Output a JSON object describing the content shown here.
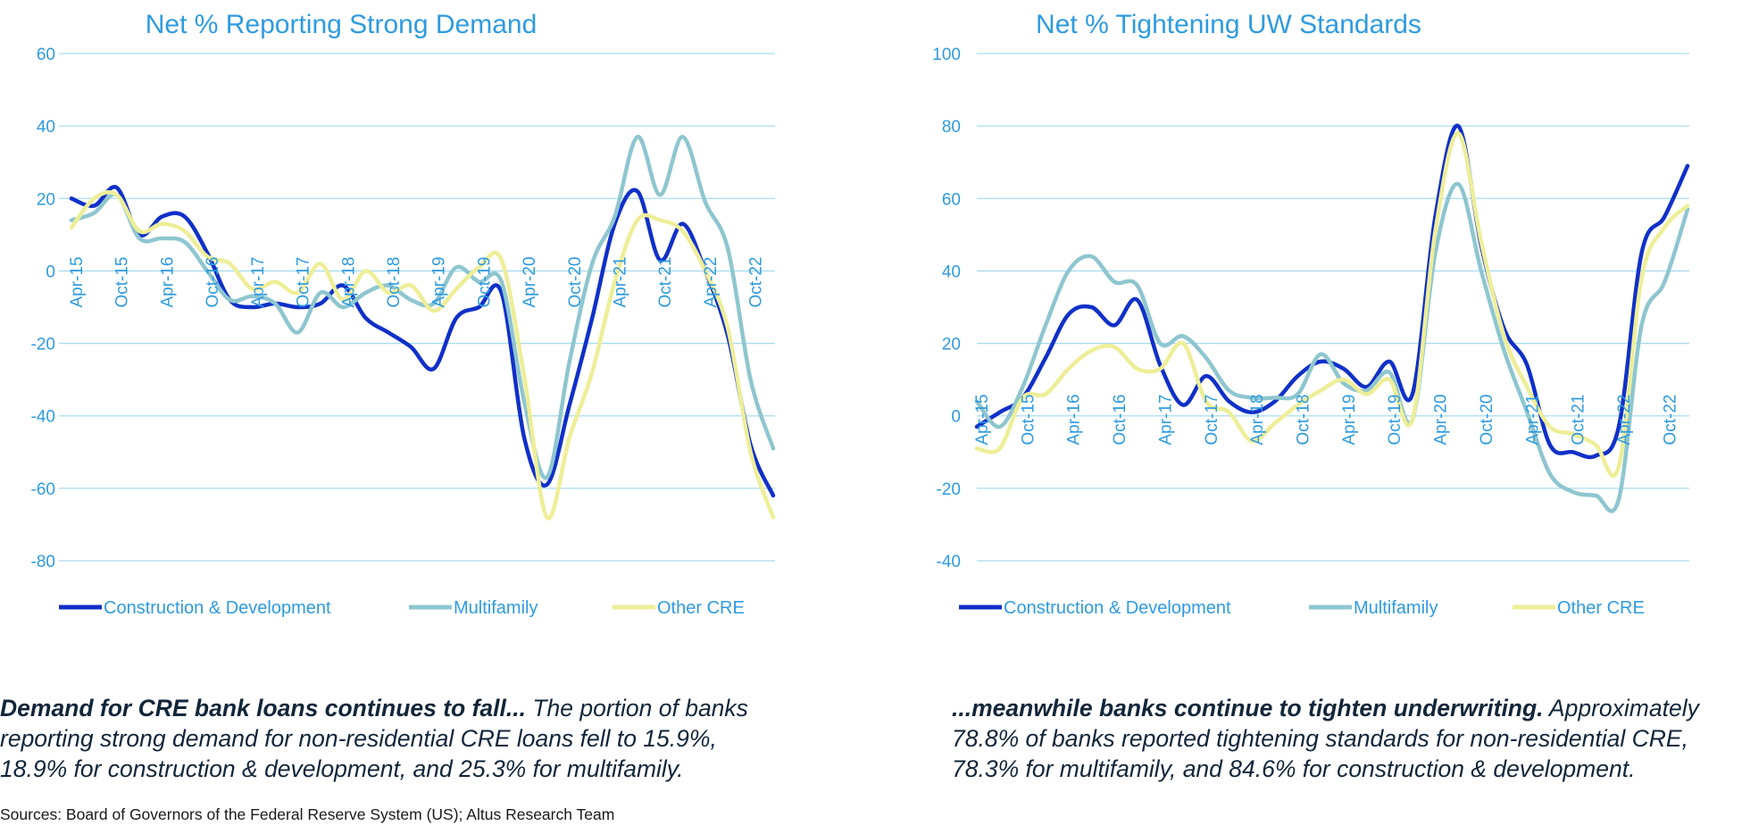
{
  "colors": {
    "construction": "#1030c8",
    "multifamily": "#8ec6cf",
    "other": "#eeee98",
    "axis_text": "#2e9be0",
    "grid": "#a9dcef"
  },
  "xtick_labels": [
    "Apr-15",
    "Oct-15",
    "Apr-16",
    "Oct-16",
    "Apr-17",
    "Oct-17",
    "Apr-18",
    "Oct-18",
    "Apr-19",
    "Oct-19",
    "Apr-20",
    "Oct-20",
    "Apr-21",
    "Oct-21",
    "Apr-22",
    "Oct-22"
  ],
  "legend_labels": [
    "Construction & Development",
    "Multifamily",
    "Other CRE"
  ],
  "chart_data": [
    {
      "type": "line",
      "title": "Net % Reporting Strong Demand",
      "xlabel": "",
      "ylabel": "",
      "ylim": [
        -80,
        60
      ],
      "yticks": [
        60,
        40,
        20,
        0,
        -20,
        -40,
        -60,
        -80
      ],
      "x": [
        "Apr-15",
        "Jul-15",
        "Oct-15",
        "Jan-16",
        "Apr-16",
        "Jul-16",
        "Oct-16",
        "Jan-17",
        "Apr-17",
        "Jul-17",
        "Oct-17",
        "Jan-18",
        "Apr-18",
        "Jul-18",
        "Oct-18",
        "Jan-19",
        "Apr-19",
        "Jul-19",
        "Oct-19",
        "Jan-20",
        "Apr-20",
        "Jul-20",
        "Oct-20",
        "Jan-21",
        "Apr-21",
        "Jul-21",
        "Oct-21",
        "Jan-22",
        "Apr-22",
        "Jul-22",
        "Oct-22",
        "Jan-23"
      ],
      "grid": true,
      "legend_position": "bottom",
      "series": [
        {
          "name": "Construction & Development",
          "color_key": "construction",
          "values": [
            20,
            18,
            23,
            10,
            15,
            15,
            5,
            -8,
            -10,
            -9,
            -10,
            -9,
            -4,
            -13,
            -17,
            -21,
            -27,
            -13,
            -10,
            -6,
            -46,
            -59,
            -37,
            -13,
            13,
            22,
            3,
            13,
            0,
            -18,
            -48,
            -62
          ]
        },
        {
          "name": "Multifamily",
          "color_key": "multifamily",
          "values": [
            14,
            16,
            21,
            9,
            9,
            8,
            0,
            -8,
            -7,
            -9,
            -17,
            -6,
            -10,
            -6,
            -4,
            -8,
            -9,
            1,
            -3,
            -3,
            -36,
            -57,
            -25,
            2,
            15,
            37,
            21,
            37,
            19,
            6,
            -30,
            -49
          ]
        },
        {
          "name": "Other CRE",
          "color_key": "other",
          "values": [
            12,
            20,
            21,
            11,
            13,
            11,
            4,
            2,
            -5,
            -3,
            -6,
            2,
            -8,
            0,
            -6,
            -4,
            -11,
            -5,
            1,
            3,
            -29,
            -68,
            -46,
            -28,
            -3,
            14,
            14,
            11,
            0,
            -16,
            -50,
            -68
          ]
        }
      ]
    },
    {
      "type": "line",
      "title": "Net % Tightening UW Standards",
      "xlabel": "",
      "ylabel": "",
      "ylim": [
        -40,
        100
      ],
      "yticks": [
        100,
        80,
        60,
        40,
        20,
        0,
        -20,
        -40
      ],
      "x": [
        "Apr-15",
        "Jul-15",
        "Oct-15",
        "Jan-16",
        "Apr-16",
        "Jul-16",
        "Oct-16",
        "Jan-17",
        "Apr-17",
        "Jul-17",
        "Oct-17",
        "Jan-18",
        "Apr-18",
        "Jul-18",
        "Oct-18",
        "Jan-19",
        "Apr-19",
        "Jul-19",
        "Oct-19",
        "Jan-20",
        "Apr-20",
        "Jul-20",
        "Oct-20",
        "Jan-21",
        "Apr-21",
        "Jul-21",
        "Oct-21",
        "Jan-22",
        "Apr-22",
        "Jul-22",
        "Oct-22",
        "Jan-23"
      ],
      "grid": true,
      "legend_position": "bottom",
      "series": [
        {
          "name": "Construction & Development",
          "color_key": "construction",
          "values": [
            -3,
            1,
            5,
            16,
            28,
            30,
            25,
            32,
            14,
            3,
            11,
            4,
            1,
            4,
            11,
            15,
            13,
            8,
            15,
            6,
            55,
            80,
            47,
            24,
            14,
            -8,
            -10,
            -11,
            -3,
            45,
            55,
            69
          ]
        },
        {
          "name": "Multifamily",
          "color_key": "multifamily",
          "values": [
            4,
            -3,
            8,
            25,
            40,
            44,
            37,
            36,
            20,
            22,
            16,
            7,
            5,
            5,
            6,
            17,
            9,
            7,
            12,
            -1,
            45,
            64,
            40,
            18,
            1,
            -16,
            -21,
            -22,
            -23,
            25,
            37,
            57
          ]
        },
        {
          "name": "Other CRE",
          "color_key": "other",
          "values": [
            -9,
            -9,
            5,
            6,
            13,
            18,
            19,
            13,
            13,
            20,
            4,
            1,
            -7,
            -2,
            3,
            7,
            10,
            6,
            10,
            -1,
            51,
            78,
            48,
            22,
            8,
            -3,
            -5,
            -8,
            -14,
            38,
            52,
            58
          ]
        }
      ]
    }
  ],
  "captions": {
    "left_bold": "Demand for CRE bank loans continues to fall...",
    "left_text": " The portion of banks reporting strong demand for non-residential CRE loans fell to 15.9%, 18.9% for construction & development, and 25.3% for multifamily.",
    "right_bold": "...meanwhile banks continue to tighten underwriting.",
    "right_text": " Approximately 78.8% of banks reported tightening standards for non-residential CRE, 78.3% for multifamily, and 84.6% for construction & development."
  },
  "sources": "Sources: Board of Governors of the Federal Reserve System (US); Altus Research Team"
}
